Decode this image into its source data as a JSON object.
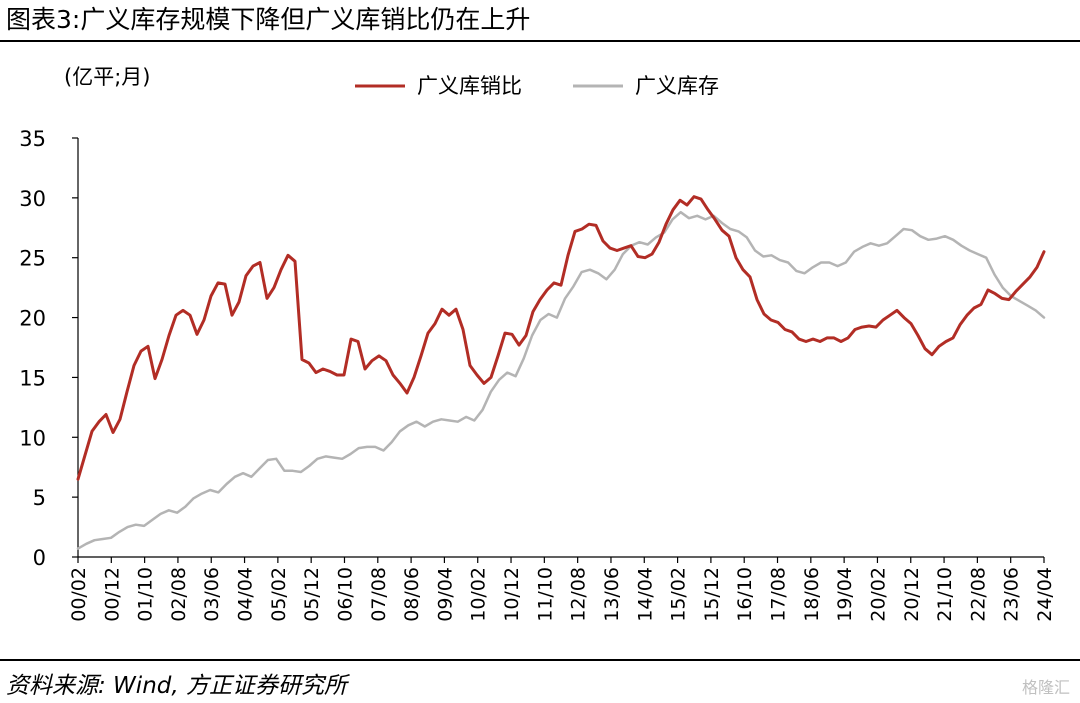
{
  "header": {
    "title": "图表3:广义库存规模下降但广义库销比仍在上升"
  },
  "footer": {
    "source": "资料来源: Wind, 方正证券研究所",
    "watermark": "格隆汇"
  },
  "colors": {
    "ratio": "#B22D25",
    "inventory": "#B4B4B4",
    "axis": "#000000"
  },
  "chart_data": {
    "type": "line",
    "unit_label": "(亿平;月)",
    "x_tick_labels": [
      "00/02",
      "00/12",
      "01/10",
      "02/08",
      "03/06",
      "04/04",
      "05/02",
      "05/12",
      "06/10",
      "07/08",
      "08/06",
      "09/04",
      "10/02",
      "10/12",
      "11/10",
      "12/08",
      "13/06",
      "14/04",
      "15/02",
      "15/12",
      "16/10",
      "17/08",
      "18/06",
      "19/04",
      "20/02",
      "20/12",
      "21/10",
      "22/08",
      "23/06",
      "24/04"
    ],
    "ylim": [
      0,
      35
    ],
    "y_ticks": [
      0,
      5,
      10,
      15,
      20,
      25,
      30,
      35
    ],
    "legend_position": "top",
    "series": [
      {
        "name": "广义库销比",
        "color": "#B22D25",
        "points": [
          [
            "2000-02",
            6.5
          ],
          [
            "2000-04",
            8.5
          ],
          [
            "2000-06",
            10.5
          ],
          [
            "2000-09",
            11.3
          ],
          [
            "2000-11",
            11.9
          ],
          [
            "2000-12",
            10.4
          ],
          [
            "2001-02",
            11.5
          ],
          [
            "2001-04",
            13.8
          ],
          [
            "2001-06",
            16
          ],
          [
            "2001-09",
            17.2
          ],
          [
            "2001-10",
            17.6
          ],
          [
            "2001-11",
            14.9
          ],
          [
            "2002-01",
            16.5
          ],
          [
            "2002-03",
            18.5
          ],
          [
            "2002-05",
            20.2
          ],
          [
            "2002-07",
            20.6
          ],
          [
            "2002-08",
            20.2
          ],
          [
            "2002-09",
            18.6
          ],
          [
            "2002-11",
            19.8
          ],
          [
            "2003-01",
            21.8
          ],
          [
            "2003-04",
            22.9
          ],
          [
            "2003-06",
            22.8
          ],
          [
            "2003-07",
            20.2
          ],
          [
            "2003-09",
            21.3
          ],
          [
            "2003-12",
            23.5
          ],
          [
            "2004-02",
            24.3
          ],
          [
            "2004-04",
            24.6
          ],
          [
            "2004-05",
            21.6
          ],
          [
            "2004-07",
            22.5
          ],
          [
            "2004-09",
            24
          ],
          [
            "2004-11",
            25.2
          ],
          [
            "2004-12",
            24.7
          ],
          [
            "2005-01",
            16.5
          ],
          [
            "2005-02",
            16.2
          ],
          [
            "2005-03",
            15.4
          ],
          [
            "2005-05",
            15.7
          ],
          [
            "2005-07",
            15.5
          ],
          [
            "2005-09",
            15.2
          ],
          [
            "2005-10",
            15.2
          ],
          [
            "2005-11",
            18.2
          ],
          [
            "2006-01",
            18
          ],
          [
            "2006-02",
            15.7
          ],
          [
            "2006-04",
            16.4
          ],
          [
            "2006-06",
            16.8
          ],
          [
            "2006-08",
            16.4
          ],
          [
            "2006-09",
            15.2
          ],
          [
            "2006-11",
            14.5
          ],
          [
            "2006-12",
            13.7
          ],
          [
            "2007-03",
            15
          ],
          [
            "2007-05",
            16.8
          ],
          [
            "2007-08",
            18.7
          ],
          [
            "2007-09",
            19.5
          ],
          [
            "2007-11",
            20.7
          ],
          [
            "2008-01",
            20.2
          ],
          [
            "2008-03",
            20.7
          ],
          [
            "2008-06",
            19
          ],
          [
            "2008-09",
            16
          ],
          [
            "2008-11",
            15.2
          ],
          [
            "2008-12",
            14.5
          ],
          [
            "2009-02",
            15
          ],
          [
            "2009-05",
            16.8
          ],
          [
            "2009-07",
            18.7
          ],
          [
            "2009-10",
            18.6
          ],
          [
            "2009-11",
            17.7
          ],
          [
            "2010-01",
            18.5
          ],
          [
            "2010-04",
            20.5
          ],
          [
            "2010-07",
            21.5
          ],
          [
            "2010-09",
            22.3
          ],
          [
            "2010-11",
            22.9
          ],
          [
            "2011-01",
            22.7
          ],
          [
            "2011-04",
            25.2
          ],
          [
            "2011-06",
            27.2
          ],
          [
            "2011-07",
            27.4
          ],
          [
            "2011-08",
            27.8
          ],
          [
            "2011-09",
            27.7
          ],
          [
            "2011-11",
            26.4
          ],
          [
            "2012-01",
            25.8
          ],
          [
            "2012-04",
            25.6
          ],
          [
            "2012-06",
            25.8
          ],
          [
            "2012-08",
            26
          ],
          [
            "2012-10",
            25.1
          ],
          [
            "2012-12",
            25
          ],
          [
            "2013-02",
            25.3
          ],
          [
            "2013-05",
            26.3
          ],
          [
            "2013-08",
            27.8
          ],
          [
            "2013-10",
            29
          ],
          [
            "2013-12",
            29.8
          ],
          [
            "2014-01",
            29.4
          ],
          [
            "2014-03",
            30.1
          ],
          [
            "2014-05",
            29.9
          ],
          [
            "2014-07",
            29
          ],
          [
            "2014-09",
            28.2
          ],
          [
            "2014-11",
            27.3
          ],
          [
            "2015-01",
            26.8
          ],
          [
            "2015-03",
            25
          ],
          [
            "2015-05",
            24
          ],
          [
            "2015-07",
            23.4
          ],
          [
            "2015-09",
            21.5
          ],
          [
            "2015-11",
            20.3
          ],
          [
            "2016-01",
            19.8
          ],
          [
            "2016-04",
            19.6
          ],
          [
            "2016-06",
            19
          ],
          [
            "2016-09",
            18.8
          ],
          [
            "2016-12",
            18.2
          ],
          [
            "2017-02",
            18
          ],
          [
            "2017-04",
            18.2
          ],
          [
            "2017-06",
            18
          ],
          [
            "2017-08",
            18.3
          ],
          [
            "2017-10",
            18.3
          ],
          [
            "2017-11",
            18
          ],
          [
            "2018-02",
            18.3
          ],
          [
            "2018-05",
            19
          ],
          [
            "2018-08",
            19.2
          ],
          [
            "2018-11",
            19.3
          ],
          [
            "2019-01",
            19.2
          ],
          [
            "2019-03",
            19.8
          ],
          [
            "2019-05",
            20.2
          ],
          [
            "2019-08",
            20.6
          ],
          [
            "2019-10",
            20
          ],
          [
            "2019-12",
            19.5
          ],
          [
            "2020-02",
            18.5
          ],
          [
            "2020-03",
            17.4
          ],
          [
            "2020-06",
            16.9
          ],
          [
            "2020-09",
            17.6
          ],
          [
            "2020-11",
            18
          ],
          [
            "2021-02",
            18.3
          ],
          [
            "2021-05",
            19.4
          ],
          [
            "2021-07",
            20.2
          ],
          [
            "2021-09",
            20.8
          ],
          [
            "2021-11",
            21.1
          ],
          [
            "2022-02",
            22.3
          ],
          [
            "2022-04",
            22
          ],
          [
            "2022-06",
            21.6
          ],
          [
            "2022-08",
            21.5
          ],
          [
            "2022-10",
            22.2
          ],
          [
            "2022-12",
            22.8
          ],
          [
            "2023-03",
            23.4
          ],
          [
            "2023-05",
            24.2
          ],
          [
            "2023-09",
            25.5
          ]
        ]
      },
      {
        "name": "广义库存",
        "color": "#B4B4B4",
        "points": [
          [
            "2000-02",
            0.7
          ],
          [
            "2000-05",
            1.1
          ],
          [
            "2000-08",
            1.4
          ],
          [
            "2000-11",
            1.5
          ],
          [
            "2001-01",
            1.6
          ],
          [
            "2001-04",
            2.1
          ],
          [
            "2001-07",
            2.5
          ],
          [
            "2001-10",
            2.7
          ],
          [
            "2001-12",
            2.6
          ],
          [
            "2002-03",
            3.1
          ],
          [
            "2002-06",
            3.6
          ],
          [
            "2002-09",
            3.9
          ],
          [
            "2002-10",
            3.7
          ],
          [
            "2003-01",
            4.2
          ],
          [
            "2003-04",
            4.9
          ],
          [
            "2003-07",
            5.3
          ],
          [
            "2003-10",
            5.6
          ],
          [
            "2003-11",
            5.4
          ],
          [
            "2004-02",
            6.1
          ],
          [
            "2004-05",
            6.7
          ],
          [
            "2004-08",
            7
          ],
          [
            "2004-09",
            6.7
          ],
          [
            "2004-12",
            7.4
          ],
          [
            "2005-03",
            8.1
          ],
          [
            "2005-04",
            8.2
          ],
          [
            "2005-05",
            7.2
          ],
          [
            "2005-07",
            7.2
          ],
          [
            "2005-08",
            7.1
          ],
          [
            "2005-11",
            7.6
          ],
          [
            "2006-02",
            8.2
          ],
          [
            "2006-05",
            8.4
          ],
          [
            "2006-07",
            8.3
          ],
          [
            "2006-09",
            8.2
          ],
          [
            "2006-12",
            8.6
          ],
          [
            "2007-03",
            9.1
          ],
          [
            "2007-05",
            9.2
          ],
          [
            "2007-07",
            9.2
          ],
          [
            "2007-09",
            8.9
          ],
          [
            "2007-12",
            9.6
          ],
          [
            "2008-03",
            10.5
          ],
          [
            "2008-06",
            11
          ],
          [
            "2008-09",
            11.3
          ],
          [
            "2008-10",
            10.9
          ],
          [
            "2009-01",
            11.3
          ],
          [
            "2009-03",
            11.5
          ],
          [
            "2009-06",
            11.4
          ],
          [
            "2009-08",
            11.3
          ],
          [
            "2009-09",
            11.7
          ],
          [
            "2009-10",
            11.4
          ],
          [
            "2010-01",
            12.3
          ],
          [
            "2010-04",
            13.8
          ],
          [
            "2010-07",
            14.8
          ],
          [
            "2010-10",
            15.4
          ],
          [
            "2010-11",
            15.1
          ],
          [
            "2011-02",
            16.6
          ],
          [
            "2011-05",
            18.5
          ],
          [
            "2011-07",
            19.8
          ],
          [
            "2011-09",
            20.3
          ],
          [
            "2011-10",
            20
          ],
          [
            "2012-01",
            21.6
          ],
          [
            "2012-04",
            22.6
          ],
          [
            "2012-07",
            23.8
          ],
          [
            "2012-09",
            24
          ],
          [
            "2012-12",
            23.7
          ],
          [
            "2013-01",
            23.2
          ],
          [
            "2013-03",
            24
          ],
          [
            "2013-07",
            25.3
          ],
          [
            "2013-11",
            26
          ],
          [
            "2014-02",
            26.3
          ],
          [
            "2014-05",
            26.1
          ],
          [
            "2014-09",
            26.7
          ],
          [
            "2014-12",
            27.1
          ],
          [
            "2015-01",
            28.2
          ],
          [
            "2015-03",
            28.8
          ],
          [
            "2015-05",
            28.3
          ],
          [
            "2015-09",
            28.5
          ],
          [
            "2015-12",
            28.2
          ],
          [
            "2016-03",
            28.5
          ],
          [
            "2016-06",
            27.9
          ],
          [
            "2016-09",
            27.4
          ],
          [
            "2016-12",
            27.2
          ],
          [
            "2017-01",
            26.7
          ],
          [
            "2017-03",
            25.6
          ],
          [
            "2017-05",
            25.1
          ],
          [
            "2017-07",
            25.2
          ],
          [
            "2017-09",
            24.8
          ],
          [
            "2017-11",
            24.6
          ],
          [
            "2018-01",
            23.9
          ],
          [
            "2018-03",
            23.7
          ],
          [
            "2018-05",
            24.2
          ],
          [
            "2018-07",
            24.6
          ],
          [
            "2018-09",
            24.6
          ],
          [
            "2018-11",
            24.3
          ],
          [
            "2019-01",
            24.6
          ],
          [
            "2019-03",
            25.5
          ],
          [
            "2019-05",
            25.9
          ],
          [
            "2019-07",
            26.2
          ],
          [
            "2019-09",
            26
          ],
          [
            "2019-11",
            26.2
          ],
          [
            "2020-01",
            26.8
          ],
          [
            "2020-03",
            27.4
          ],
          [
            "2020-05",
            27.3
          ],
          [
            "2020-07",
            26.8
          ],
          [
            "2020-09",
            26.5
          ],
          [
            "2020-11",
            26.6
          ],
          [
            "2021-02",
            26.8
          ],
          [
            "2021-04",
            26.5
          ],
          [
            "2021-06",
            26
          ],
          [
            "2021-08",
            25.6
          ],
          [
            "2021-10",
            25.3
          ],
          [
            "2021-12",
            25
          ],
          [
            "2022-03",
            23.6
          ],
          [
            "2022-06",
            22.5
          ],
          [
            "2022-09",
            21.8
          ],
          [
            "2022-12",
            21.4
          ],
          [
            "2023-03",
            21
          ],
          [
            "2023-06",
            20.6
          ],
          [
            "2023-09",
            20
          ]
        ]
      }
    ]
  }
}
